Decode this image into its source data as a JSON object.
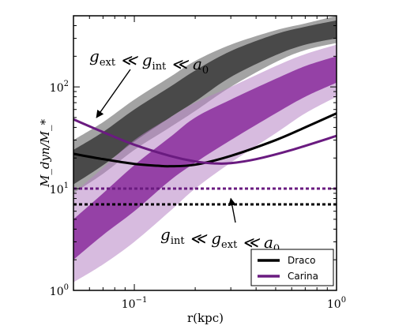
{
  "chart_data": {
    "type": "line",
    "xscale": "log",
    "yscale": "log",
    "xlim": [
      0.05,
      1.0
    ],
    "ylim": [
      1,
      500
    ],
    "xlabel": "r(kpc)",
    "ylabel": "M_dyn/M_*",
    "x_ticks": [
      {
        "value": 0.1,
        "base": "10",
        "exp": "−1"
      },
      {
        "value": 1,
        "base": "10",
        "exp": "0"
      }
    ],
    "y_ticks": [
      {
        "value": 1,
        "base": "10",
        "exp": "0"
      },
      {
        "value": 10,
        "base": "10",
        "exp": "1"
      },
      {
        "value": 100,
        "base": "10",
        "exp": "2"
      }
    ],
    "series": [
      {
        "name": "Draco",
        "color": "#000000",
        "band_color": "#333333",
        "band_x": [
          0.05,
          0.07,
          0.1,
          0.15,
          0.2,
          0.3,
          0.5,
          0.7,
          1.0
        ],
        "outer_upper": [
          30,
          45,
          75,
          125,
          180,
          260,
          360,
          420,
          500
        ],
        "outer_lower": [
          9,
          14,
          24,
          40,
          58,
          100,
          175,
          230,
          270
        ],
        "inner_upper": [
          24,
          36,
          60,
          100,
          145,
          225,
          330,
          390,
          450
        ],
        "inner_lower": [
          11,
          17,
          29,
          50,
          72,
          125,
          205,
          260,
          300
        ],
        "curve_x": [
          0.05,
          0.07,
          0.1,
          0.13,
          0.15,
          0.2,
          0.3,
          0.5,
          0.7,
          1.0
        ],
        "curve_y": [
          22,
          19.5,
          17.5,
          16.8,
          16.6,
          17.2,
          21,
          30,
          40,
          55
        ],
        "level": 7
      },
      {
        "name": "Carina",
        "color": "#6a1b80",
        "band_color": "#b784c4",
        "band_x": [
          0.05,
          0.07,
          0.1,
          0.15,
          0.2,
          0.3,
          0.5,
          0.7,
          1.0
        ],
        "outer_upper": [
          9,
          16,
          30,
          50,
          70,
          100,
          160,
          210,
          260
        ],
        "outer_lower": [
          1.2,
          1.8,
          3,
          6,
          10,
          18,
          35,
          55,
          80
        ],
        "inner_upper": [
          5,
          9,
          17,
          32,
          50,
          75,
          120,
          160,
          200
        ],
        "inner_lower": [
          2,
          3.5,
          6,
          12,
          18,
          30,
          55,
          80,
          110
        ],
        "curve_x": [
          0.05,
          0.07,
          0.1,
          0.15,
          0.2,
          0.25,
          0.3,
          0.4,
          0.6,
          1.0
        ],
        "curve_y": [
          48,
          36,
          27,
          21,
          18.5,
          17.7,
          17.8,
          19.5,
          24,
          33
        ],
        "level": 10
      }
    ],
    "annotations": [
      {
        "parts": [
          {
            "t": "g",
            "sub": "ext"
          },
          {
            "t": " ≪ "
          },
          {
            "t": "g",
            "sub": "int"
          },
          {
            "t": " ≪ "
          },
          {
            "t": "a",
            "sub": "0"
          }
        ],
        "arrow_to": [
          0.065,
          50
        ]
      },
      {
        "parts": [
          {
            "t": "g",
            "sub": "int"
          },
          {
            "t": " ≪ "
          },
          {
            "t": "g",
            "sub": "ext"
          },
          {
            "t": " ≪ "
          },
          {
            "t": "a",
            "sub": "0"
          }
        ],
        "arrow_to": [
          0.3,
          8
        ]
      }
    ],
    "legend": {
      "position": "bottom-right",
      "entries": [
        "Draco",
        "Carina"
      ]
    }
  }
}
